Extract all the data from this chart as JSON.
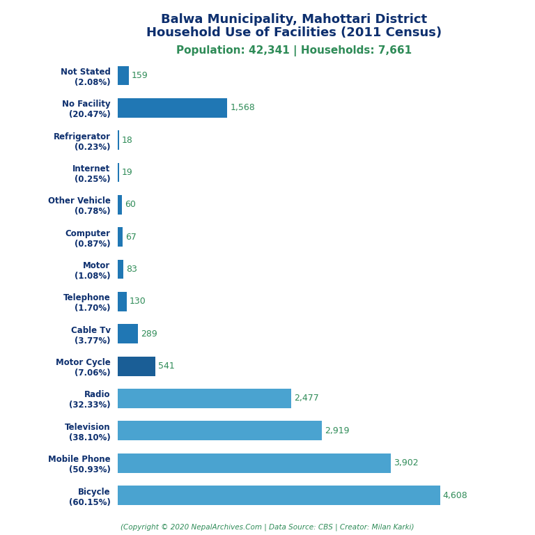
{
  "title_line1": "Balwa Municipality, Mahottari District",
  "title_line2": "Household Use of Facilities (2011 Census)",
  "subtitle": "Population: 42,341 | Households: 7,661",
  "footer": "(Copyright © 2020 NepalArchives.Com | Data Source: CBS | Creator: Milan Karki)",
  "categories": [
    "Not Stated\n(2.08%)",
    "No Facility\n(20.47%)",
    "Refrigerator\n(0.23%)",
    "Internet\n(0.25%)",
    "Other Vehicle\n(0.78%)",
    "Computer\n(0.87%)",
    "Motor\n(1.08%)",
    "Telephone\n(1.70%)",
    "Cable Tv\n(3.77%)",
    "Motor Cycle\n(7.06%)",
    "Radio\n(32.33%)",
    "Television\n(38.10%)",
    "Mobile Phone\n(50.93%)",
    "Bicycle\n(60.15%)"
  ],
  "values": [
    159,
    1568,
    18,
    19,
    60,
    67,
    83,
    130,
    289,
    541,
    2477,
    2919,
    3902,
    4608
  ],
  "bar_colors": [
    "#2077b4",
    "#2077b4",
    "#2077b4",
    "#2077b4",
    "#2077b4",
    "#2077b4",
    "#2077b4",
    "#2077b4",
    "#2077b4",
    "#1a5e96",
    "#4aa3d0",
    "#4aa3d0",
    "#4aa3d0",
    "#4aa3d0"
  ],
  "title_color": "#0d2f6e",
  "subtitle_color": "#2e8b57",
  "label_color": "#2e8b57",
  "ylabel_color": "#0d2f6e",
  "footer_color": "#2e8b57",
  "background_color": "#ffffff",
  "xlim": [
    0,
    5200
  ],
  "bar_height": 0.6
}
